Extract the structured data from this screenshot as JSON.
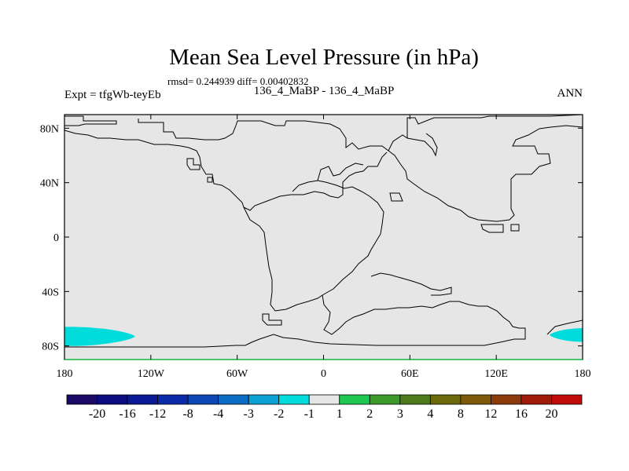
{
  "chart_data": {
    "type": "heatmap",
    "title": "Mean Sea Level Pressure (in hPa)",
    "stats_text": "rmsd= 0.244939 diff= 0.00402832",
    "left_label": "Expt = tfgWb-teyEb",
    "center_label": "136_4_MaBP - 136_4_MaBP",
    "right_label": "ANN",
    "x_ticks": [
      "180",
      "120W",
      "60W",
      "0",
      "60E",
      "120E",
      "180"
    ],
    "y_ticks": [
      "80N",
      "40N",
      "0",
      "40S",
      "80S"
    ],
    "xlim": [
      -180,
      180
    ],
    "ylim": [
      -90,
      90
    ],
    "background_fill": "#e6e6e6",
    "colorbar": {
      "labels": [
        "-20",
        "-16",
        "-12",
        "-8",
        "-4",
        "-3",
        "-2",
        "-1",
        "1",
        "2",
        "3",
        "4",
        "8",
        "12",
        "16",
        "20"
      ],
      "colors": [
        "#1a0a66",
        "#0c0c80",
        "#0a1a96",
        "#0a2aa8",
        "#0c48b4",
        "#0a6cc4",
        "#0aa0d4",
        "#00dcdc",
        "#e6e6e6",
        "#1ec850",
        "#3c9a2a",
        "#4e7a1c",
        "#6a6a0a",
        "#7c5a0a",
        "#8c3a0a",
        "#a01a0a",
        "#c00a0a"
      ]
    },
    "anomaly_patches": [
      {
        "name": "cyan-patch-southwest",
        "color": "#00dcdc",
        "lon": [
          -180,
          -131
        ],
        "lat": [
          -80,
          -66
        ],
        "value_bin": "-2 to -1"
      },
      {
        "name": "cyan-patch-southeast",
        "color": "#00dcdc",
        "lon": [
          157,
          180
        ],
        "lat": [
          -77,
          -67
        ],
        "value_bin": "-2 to -1"
      }
    ]
  }
}
